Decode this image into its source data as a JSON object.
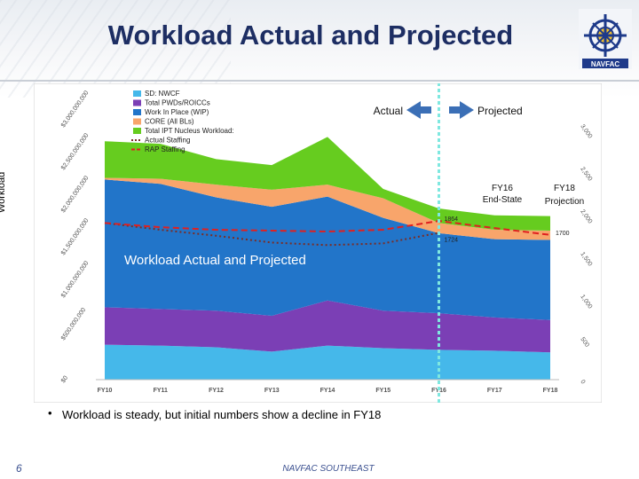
{
  "slide": {
    "title": "Workload Actual and Projected",
    "bullet_glyph": "•",
    "bullet": "Workload is steady, but initial numbers show a decline in FY18",
    "page_number": "6",
    "footer": "NAVFAC SOUTHEAST",
    "logo_label": "NAVFAC"
  },
  "chart_data": {
    "type": "area",
    "stacked": true,
    "title": "Workload Actual and Projected",
    "ylabel": "Workload",
    "categories": [
      "FY10",
      "FY11",
      "FY12",
      "FY13",
      "FY14",
      "FY15",
      "FY16",
      "FY17",
      "FY18"
    ],
    "y_left": {
      "range": [
        0,
        3000000000
      ],
      "ticks": [
        "$0",
        "$500,000,000",
        "$1,000,000,000",
        "$1,500,000,000",
        "$2,000,000,000",
        "$2,500,000,000",
        "$3,000,000,000"
      ]
    },
    "y_right": {
      "range": [
        0,
        3000
      ],
      "ticks": [
        "0",
        "500",
        "1,000",
        "1,500",
        "2,000",
        "2,500",
        "3,000"
      ]
    },
    "series": [
      {
        "name": "SD: NWCF",
        "color": "#45b8ea",
        "values": [
          410000000,
          400000000,
          380000000,
          330000000,
          400000000,
          370000000,
          350000000,
          340000000,
          320000000
        ]
      },
      {
        "name": "Total PWDs/ROICCs",
        "color": "#7b3fb5",
        "values": [
          440000000,
          430000000,
          430000000,
          420000000,
          530000000,
          440000000,
          430000000,
          390000000,
          380000000
        ]
      },
      {
        "name": "Work In Place (WIP)",
        "color": "#2275c9",
        "values": [
          1500000000,
          1470000000,
          1330000000,
          1280000000,
          1220000000,
          1090000000,
          940000000,
          920000000,
          940000000
        ]
      },
      {
        "name": "CORE (All BLs)",
        "color": "#f8a56b",
        "values": [
          20000000,
          60000000,
          150000000,
          200000000,
          140000000,
          230000000,
          120000000,
          110000000,
          110000000
        ]
      },
      {
        "name": "Total IPT Nucleus Workload:",
        "color": "#66cc1f",
        "values": [
          430000000,
          410000000,
          300000000,
          290000000,
          560000000,
          110000000,
          170000000,
          170000000,
          170000000
        ]
      }
    ],
    "lines": [
      {
        "name": "Actual Staffing",
        "color": "#7a2d26",
        "dash": "dotted",
        "values": [
          1840,
          1760,
          1690,
          1610,
          1580,
          1600,
          1724,
          null,
          null
        ]
      },
      {
        "name": "RAP Staffing",
        "color": "#e02020",
        "dash": "dashed",
        "values": [
          1840,
          1790,
          1760,
          1750,
          1740,
          1760,
          1864,
          1780,
          1700
        ]
      }
    ],
    "point_labels": [
      {
        "text": "1864",
        "series": "RAP Staffing",
        "index": 6
      },
      {
        "text": "1724",
        "series": "Actual Staffing",
        "index": 6
      },
      {
        "text": "1700",
        "series": "RAP Staffing",
        "index": 8
      }
    ],
    "annotations": {
      "actual": "Actual",
      "projected": "Projected",
      "fy16": [
        "FY16",
        "End-State"
      ],
      "fy18": [
        "FY18",
        "Projection"
      ],
      "divider_at": "FY16"
    },
    "legend_position": "top-left"
  }
}
